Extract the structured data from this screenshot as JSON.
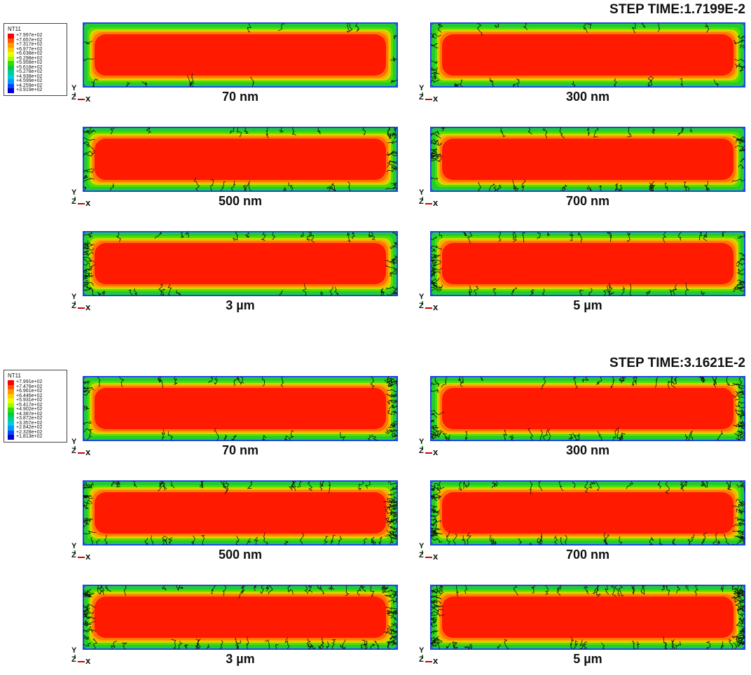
{
  "sections": [
    {
      "step_time": "STEP TIME:1.7199E-2",
      "legend": {
        "title": "NT11",
        "levels": [
          "+7.997e+02",
          "+7.657e+02",
          "+7.317e+02",
          "+6.977e+02",
          "+6.638e+02",
          "+6.298e+02",
          "+5.958e+02",
          "+5.618e+02",
          "+5.278e+02",
          "+4.938e+02",
          "+4.599e+02",
          "+4.259e+02",
          "+3.919e+02"
        ]
      },
      "panels": [
        {
          "label": "70 nm"
        },
        {
          "label": "300 nm"
        },
        {
          "label": "500 nm"
        },
        {
          "label": "700 nm"
        },
        {
          "label": "3 µm"
        },
        {
          "label": "5 µm"
        }
      ]
    },
    {
      "step_time": "STEP TIME:3.1621E-2",
      "legend": {
        "title": "NT11",
        "levels": [
          "+7.991e+02",
          "+7.476e+02",
          "+6.961e+02",
          "+6.446e+02",
          "+5.931e+02",
          "+5.417e+02",
          "+4.902e+02",
          "+4.387e+02",
          "+3.872e+02",
          "+3.357e+02",
          "+2.842e+02",
          "+2.328e+02",
          "+1.813e+02"
        ]
      },
      "panels": [
        {
          "label": "70 nm"
        },
        {
          "label": "300 nm"
        },
        {
          "label": "500 nm"
        },
        {
          "label": "700 nm"
        },
        {
          "label": "3 µm"
        },
        {
          "label": "5 µm"
        }
      ]
    }
  ],
  "legend_colors": [
    "#ff0000",
    "#ff5500",
    "#ff9900",
    "#ffcc00",
    "#e6ff00",
    "#99ff00",
    "#33dd00",
    "#00cc44",
    "#00cc99",
    "#00ccdd",
    "#0099ff",
    "#0044ff",
    "#0000cc"
  ],
  "triad": {
    "y": "Y",
    "z": "Z",
    "x": "X"
  }
}
